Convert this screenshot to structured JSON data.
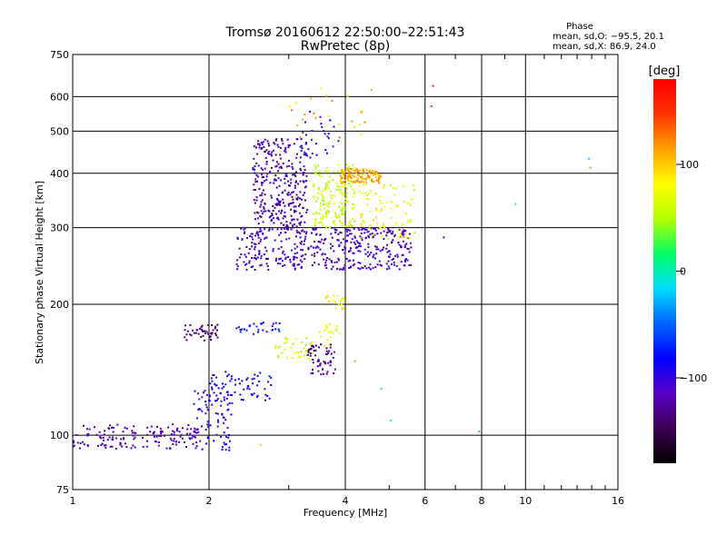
{
  "chart_data": {
    "type": "scatter",
    "title": "Tromsø 20160612 22:50:00–22:51:43",
    "subtitle": "RwPretec (8p)",
    "xlabel": "Frequency [MHz]",
    "ylabel": "Stationary phase Virtual Height [km]",
    "x_scale": "log",
    "y_scale": "log",
    "xlim": [
      1,
      16
    ],
    "ylim": [
      75,
      750
    ],
    "x_ticks": [
      1,
      2,
      4,
      6,
      8,
      10,
      16
    ],
    "x_tick_labels": [
      "1",
      "2",
      "4",
      "6",
      "8",
      "10",
      "16"
    ],
    "y_ticks": [
      75,
      100,
      200,
      300,
      400,
      500,
      600,
      750
    ],
    "y_tick_labels": [
      "75",
      "100",
      "200",
      "300",
      "400",
      "500",
      "600",
      "750"
    ],
    "grid": true,
    "stats": {
      "heading": "Phase",
      "line_O": "mean, sd,O: −95.5, 20.1",
      "line_X": "mean, sd,X: 86.9, 24.0"
    },
    "colorbar": {
      "label": "[deg]",
      "min": -180,
      "max": 180,
      "ticks": [
        100,
        0,
        -100
      ],
      "tick_labels": [
        "100",
        "0",
        "−100"
      ],
      "colors": [
        "#000000",
        "#3c0050",
        "#5a00c8",
        "#0000ff",
        "#0064ff",
        "#00dcff",
        "#00ff64",
        "#b4ff00",
        "#ffff00",
        "#ffa000",
        "#ff3200",
        "#ff0000"
      ]
    },
    "clusters": [
      {
        "x": [
          1.0,
          1.9
        ],
        "y": [
          93,
          106
        ],
        "phase": [
          -130,
          -105
        ],
        "n": 150
      },
      {
        "x": [
          1.85,
          2.25
        ],
        "y": [
          92,
          128
        ],
        "phase": [
          -125,
          -80
        ],
        "n": 80
      },
      {
        "x": [
          2.0,
          2.8
        ],
        "y": [
          120,
          140
        ],
        "phase": [
          -100,
          -70
        ],
        "n": 70
      },
      {
        "x": [
          1.75,
          2.1
        ],
        "y": [
          165,
          180
        ],
        "phase": [
          -150,
          -120
        ],
        "n": 45
      },
      {
        "x": [
          2.3,
          2.9
        ],
        "y": [
          170,
          182
        ],
        "phase": [
          -100,
          -60
        ],
        "n": 30
      },
      {
        "x": [
          2.8,
          3.4
        ],
        "y": [
          150,
          168
        ],
        "phase": [
          40,
          80
        ],
        "n": 35
      },
      {
        "x": [
          3.3,
          3.8
        ],
        "y": [
          138,
          162
        ],
        "phase": [
          -150,
          -110
        ],
        "n": 60
      },
      {
        "x": [
          3.5,
          3.9
        ],
        "y": [
          160,
          180
        ],
        "phase": [
          60,
          90
        ],
        "n": 20
      },
      {
        "x": [
          2.3,
          5.6
        ],
        "y": [
          240,
          300
        ],
        "phase": [
          -130,
          -95
        ],
        "n": 450
      },
      {
        "x": [
          2.5,
          3.3
        ],
        "y": [
          300,
          480
        ],
        "phase": [
          -140,
          -95
        ],
        "n": 300
      },
      {
        "x": [
          3.4,
          4.2
        ],
        "y": [
          300,
          420
        ],
        "phase": [
          40,
          80
        ],
        "n": 180
      },
      {
        "x": [
          3.9,
          4.8
        ],
        "y": [
          380,
          410
        ],
        "phase": [
          95,
          130
        ],
        "n": 120
      },
      {
        "x": [
          4.3,
          5.7
        ],
        "y": [
          280,
          380
        ],
        "phase": [
          60,
          100
        ],
        "n": 80
      },
      {
        "x": [
          3.6,
          4.0
        ],
        "y": [
          195,
          210
        ],
        "phase": [
          70,
          100
        ],
        "n": 20
      },
      {
        "x": [
          3.2,
          3.9
        ],
        "y": [
          430,
          560
        ],
        "phase": [
          -110,
          -60
        ],
        "n": 30
      },
      {
        "x": [
          3.0,
          4.6
        ],
        "y": [
          480,
          640
        ],
        "phase": [
          70,
          130
        ],
        "n": 25
      }
    ],
    "isolated_points": [
      {
        "x": 6.25,
        "y": 635,
        "phase": 160
      },
      {
        "x": 6.2,
        "y": 570,
        "phase": 150
      },
      {
        "x": 6.6,
        "y": 285,
        "phase": -120
      },
      {
        "x": 9.5,
        "y": 340,
        "phase": 20
      },
      {
        "x": 13.8,
        "y": 432,
        "phase": -10
      },
      {
        "x": 13.9,
        "y": 412,
        "phase": 120
      },
      {
        "x": 7.9,
        "y": 102,
        "phase": -20
      },
      {
        "x": 5.05,
        "y": 108,
        "phase": -10
      },
      {
        "x": 4.8,
        "y": 128,
        "phase": -10
      },
      {
        "x": 4.2,
        "y": 148,
        "phase": 120
      },
      {
        "x": 2.6,
        "y": 95,
        "phase": 100
      }
    ]
  }
}
